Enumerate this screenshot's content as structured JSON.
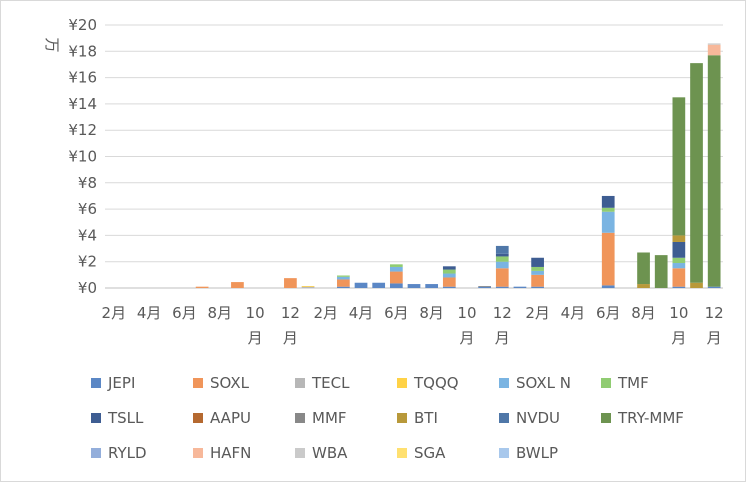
{
  "chart_data": {
    "type": "bar",
    "stacked": true,
    "ylabel": "万",
    "ylim": [
      0,
      20
    ],
    "yticks": [
      0,
      2,
      4,
      6,
      8,
      10,
      12,
      14,
      16,
      18,
      20
    ],
    "ytick_labels": [
      "¥0",
      "¥2",
      "¥4",
      "¥6",
      "¥8",
      "¥10",
      "¥12",
      "¥14",
      "¥16",
      "¥18",
      "¥20"
    ],
    "xtick_labels": [
      "2月",
      "4月",
      "6月",
      "8月",
      "10月",
      "12月",
      "2月",
      "4月",
      "6月",
      "8月",
      "10月",
      "12月",
      "2月",
      "4月",
      "6月",
      "8月",
      "10月",
      "12月"
    ],
    "grid": true,
    "legend_position": "bottom",
    "categories": [
      "2月",
      "3月",
      "4月",
      "5月",
      "6月",
      "7月",
      "8月",
      "9月",
      "10月",
      "11月",
      "12月",
      "1月",
      "2月",
      "3月",
      "4月",
      "5月",
      "6月",
      "7月",
      "8月",
      "9月",
      "10月",
      "11月",
      "12月",
      "1月",
      "2月",
      "3月",
      "4月",
      "5月",
      "6月",
      "7月",
      "8月",
      "9月",
      "10月",
      "11月",
      "12月"
    ],
    "series": [
      {
        "name": "JEPI",
        "color": "#5b87c5",
        "values": [
          0,
          0,
          0,
          0,
          0,
          0,
          0,
          0,
          0,
          0,
          0,
          0,
          0,
          0.1,
          0.4,
          0.4,
          0.35,
          0.3,
          0.3,
          0.1,
          0,
          0.1,
          0.1,
          0.1,
          0.1,
          0,
          0,
          0,
          0.2,
          0,
          0,
          0,
          0.1,
          0,
          0.1
        ]
      },
      {
        "name": "SOXL",
        "color": "#f0955a",
        "values": [
          0,
          0,
          0,
          0,
          0,
          0.1,
          0,
          0.45,
          0,
          0,
          0.75,
          0,
          0,
          0.55,
          0,
          0,
          0.9,
          0,
          0,
          0.7,
          0,
          0,
          1.4,
          0,
          0.9,
          0,
          0,
          0,
          4.0,
          0,
          0,
          0,
          1.4,
          0,
          0
        ]
      },
      {
        "name": "TECL",
        "color": "#b7b7b7",
        "values": [
          0,
          0,
          0,
          0,
          0,
          0,
          0,
          0,
          0,
          0,
          0,
          0.1,
          0,
          0,
          0,
          0,
          0,
          0,
          0,
          0,
          0,
          0,
          0,
          0,
          0,
          0,
          0,
          0,
          0,
          0,
          0,
          0,
          0,
          0,
          0
        ]
      },
      {
        "name": "TQQQ",
        "color": "#ffd246",
        "values": [
          0,
          0,
          0,
          0,
          0,
          0,
          0,
          0,
          0,
          0,
          0,
          0.05,
          0,
          0,
          0,
          0,
          0,
          0,
          0,
          0,
          0,
          0,
          0,
          0,
          0,
          0,
          0,
          0,
          0,
          0,
          0,
          0,
          0,
          0,
          0
        ]
      },
      {
        "name": "SOXL N",
        "color": "#7ab4e2",
        "values": [
          0,
          0,
          0,
          0,
          0,
          0,
          0,
          0,
          0,
          0,
          0,
          0,
          0,
          0.2,
          0,
          0,
          0.35,
          0,
          0,
          0.3,
          0,
          0,
          0.5,
          0,
          0.3,
          0,
          0,
          0,
          1.6,
          0,
          0,
          0,
          0.4,
          0,
          0
        ]
      },
      {
        "name": "TMF",
        "color": "#90cc72",
        "values": [
          0,
          0,
          0,
          0,
          0,
          0,
          0,
          0,
          0,
          0,
          0,
          0,
          0,
          0.1,
          0,
          0,
          0.2,
          0,
          0,
          0.3,
          0,
          0,
          0.4,
          0,
          0.3,
          0,
          0,
          0,
          0.3,
          0,
          0,
          0,
          0.4,
          0,
          0
        ]
      },
      {
        "name": "TSLL",
        "color": "#3e5d92",
        "values": [
          0,
          0,
          0,
          0,
          0,
          0,
          0,
          0,
          0,
          0,
          0,
          0,
          0,
          0,
          0,
          0,
          0,
          0,
          0,
          0.25,
          0,
          0,
          0.2,
          0,
          0.7,
          0,
          0,
          0,
          0.9,
          0,
          0,
          0,
          1.2,
          0,
          0
        ]
      },
      {
        "name": "AAPU",
        "color": "#b56930",
        "values": [
          0,
          0,
          0,
          0,
          0,
          0,
          0,
          0,
          0,
          0,
          0,
          0,
          0,
          0,
          0,
          0,
          0,
          0,
          0,
          0,
          0,
          0,
          0,
          0,
          0,
          0,
          0,
          0,
          0,
          0,
          0,
          0,
          0,
          0,
          0
        ]
      },
      {
        "name": "MMF",
        "color": "#888888",
        "values": [
          0,
          0,
          0,
          0,
          0,
          0,
          0,
          0,
          0,
          0,
          0,
          0,
          0,
          0,
          0,
          0,
          0,
          0,
          0,
          0,
          0,
          0.05,
          0,
          0,
          0,
          0,
          0,
          0,
          0,
          0,
          0,
          0,
          0,
          0,
          0
        ]
      },
      {
        "name": "BTI",
        "color": "#b8993a",
        "values": [
          0,
          0,
          0,
          0,
          0,
          0,
          0,
          0,
          0,
          0,
          0,
          0,
          0,
          0,
          0,
          0,
          0,
          0,
          0,
          0,
          0,
          0,
          0,
          0,
          0,
          0,
          0,
          0,
          0,
          0,
          0.3,
          0,
          0.5,
          0.4,
          0
        ]
      },
      {
        "name": "NVDU",
        "color": "#4f77a8",
        "values": [
          0,
          0,
          0,
          0,
          0,
          0,
          0,
          0,
          0,
          0,
          0,
          0,
          0,
          0,
          0,
          0,
          0,
          0,
          0,
          0,
          0,
          0,
          0.6,
          0,
          0,
          0,
          0,
          0,
          0,
          0,
          0,
          0,
          0,
          0,
          0
        ]
      },
      {
        "name": "TRY-MMF",
        "color": "#6d9350",
        "values": [
          0,
          0,
          0,
          0,
          0,
          0,
          0,
          0,
          0,
          0,
          0,
          0,
          0,
          0,
          0,
          0,
          0,
          0,
          0,
          0,
          0,
          0,
          0,
          0,
          0,
          0,
          0,
          0,
          0,
          0,
          2.4,
          2.5,
          10.5,
          16.7,
          17.6
        ]
      },
      {
        "name": "RYLD",
        "color": "#93aedb",
        "values": [
          0,
          0,
          0,
          0,
          0,
          0,
          0,
          0,
          0,
          0,
          0,
          0,
          0,
          0,
          0,
          0,
          0,
          0,
          0,
          0,
          0,
          0,
          0,
          0,
          0,
          0,
          0,
          0,
          0,
          0,
          0,
          0,
          0,
          0,
          0
        ]
      },
      {
        "name": "HAFN",
        "color": "#f7b89a",
        "values": [
          0,
          0,
          0,
          0,
          0,
          0,
          0,
          0,
          0,
          0,
          0,
          0,
          0,
          0,
          0,
          0,
          0,
          0,
          0,
          0,
          0,
          0,
          0,
          0,
          0,
          0,
          0,
          0,
          0,
          0,
          0,
          0,
          0,
          0,
          0.8
        ]
      },
      {
        "name": "WBA",
        "color": "#cacaca",
        "values": [
          0,
          0,
          0,
          0,
          0,
          0,
          0,
          0,
          0,
          0,
          0,
          0,
          0,
          0,
          0,
          0,
          0,
          0,
          0,
          0,
          0,
          0,
          0,
          0,
          0,
          0,
          0,
          0,
          0,
          0,
          0,
          0,
          0,
          0,
          0.1
        ]
      },
      {
        "name": "SGA",
        "color": "#ffe070",
        "values": [
          0,
          0,
          0,
          0,
          0,
          0,
          0,
          0,
          0,
          0,
          0,
          0,
          0,
          0,
          0,
          0,
          0,
          0,
          0,
          0,
          0,
          0,
          0,
          0,
          0,
          0,
          0,
          0,
          0,
          0,
          0,
          0,
          0,
          0,
          0
        ]
      },
      {
        "name": "BWLP",
        "color": "#a8c8ec",
        "values": [
          0,
          0,
          0,
          0,
          0,
          0,
          0,
          0,
          0,
          0,
          0,
          0,
          0,
          0,
          0,
          0,
          0,
          0,
          0,
          0,
          0,
          0,
          0,
          0,
          0,
          0,
          0,
          0,
          0,
          0,
          0,
          0,
          0,
          0,
          0
        ]
      }
    ]
  }
}
